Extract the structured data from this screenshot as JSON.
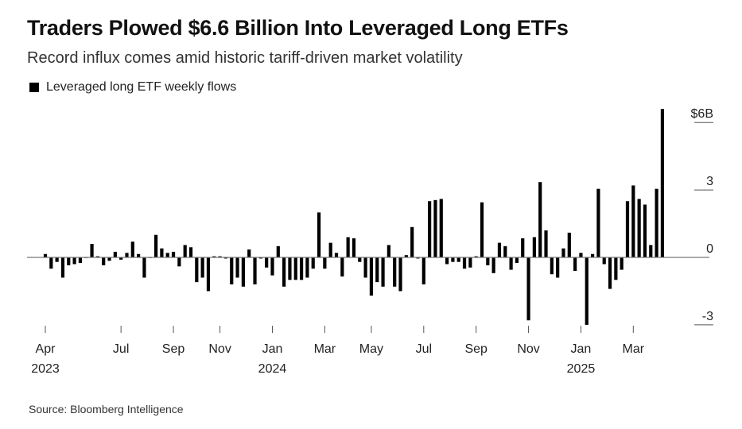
{
  "header": {
    "title": "Traders Plowed $6.6 Billion Into Leveraged Long ETFs",
    "subtitle": "Record influx comes amid historic tariff-driven market volatility"
  },
  "footer": {
    "source": "Source: Bloomberg Intelligence"
  },
  "chart_data": {
    "type": "bar",
    "legend": {
      "placement": "top-left",
      "entries": [
        "Leveraged long ETF weekly flows"
      ]
    },
    "colors": {
      "bar": "#000000",
      "zero_line": "#777777",
      "tick": "#555555"
    },
    "grid": false,
    "ylim": [
      -3.6,
      6.7
    ],
    "y_ticks": [
      {
        "value": 6,
        "label": "$6B"
      },
      {
        "value": 3,
        "label": "3"
      },
      {
        "value": 0,
        "label": "0"
      },
      {
        "value": -3,
        "label": "-3"
      }
    ],
    "x_ticks": [
      {
        "week": 0,
        "label": "Apr",
        "year": "2023"
      },
      {
        "week": 13,
        "label": "Jul",
        "year": ""
      },
      {
        "week": 22,
        "label": "Sep",
        "year": ""
      },
      {
        "week": 30,
        "label": "Nov",
        "year": ""
      },
      {
        "week": 39,
        "label": "Jan",
        "year": "2024"
      },
      {
        "week": 48,
        "label": "Mar",
        "year": ""
      },
      {
        "week": 56,
        "label": "May",
        "year": ""
      },
      {
        "week": 65,
        "label": "Jul",
        "year": ""
      },
      {
        "week": 74,
        "label": "Sep",
        "year": ""
      },
      {
        "week": 83,
        "label": "Nov",
        "year": ""
      },
      {
        "week": 92,
        "label": "Jan",
        "year": "2025"
      },
      {
        "week": 101,
        "label": "Mar",
        "year": ""
      }
    ],
    "series": [
      {
        "name": "Leveraged long ETF weekly flows",
        "values": [
          0.15,
          -0.5,
          -0.2,
          -0.9,
          -0.35,
          -0.3,
          -0.25,
          0.0,
          0.6,
          0.05,
          -0.35,
          -0.15,
          0.25,
          -0.1,
          0.2,
          0.7,
          0.15,
          -0.9,
          0.0,
          1.0,
          0.4,
          0.2,
          0.25,
          -0.4,
          0.55,
          0.45,
          -1.1,
          -0.9,
          -1.5,
          0.05,
          0.05,
          -0.05,
          -1.2,
          -0.9,
          -1.3,
          0.35,
          -1.2,
          -0.05,
          -0.45,
          -0.8,
          0.5,
          -1.3,
          -1.0,
          -1.0,
          -1.0,
          -0.9,
          -0.5,
          2.0,
          -0.5,
          0.65,
          0.2,
          -0.85,
          0.9,
          0.85,
          -0.2,
          -0.9,
          -1.7,
          -1.1,
          -1.3,
          0.55,
          -1.3,
          -1.5,
          0.1,
          1.35,
          -0.05,
          -1.2,
          2.5,
          2.55,
          2.6,
          -0.3,
          -0.2,
          -0.2,
          -0.5,
          -0.45,
          0.05,
          2.45,
          -0.35,
          -0.7,
          0.65,
          0.5,
          -0.55,
          -0.25,
          0.85,
          -2.8,
          0.9,
          3.35,
          1.2,
          -0.75,
          -0.9,
          0.4,
          1.1,
          -0.6,
          0.2,
          -3.0,
          0.15,
          3.05,
          -0.3,
          -1.4,
          -1.0,
          -0.55,
          2.5,
          3.2,
          2.6,
          2.35,
          0.55,
          3.05,
          6.6
        ]
      }
    ]
  }
}
